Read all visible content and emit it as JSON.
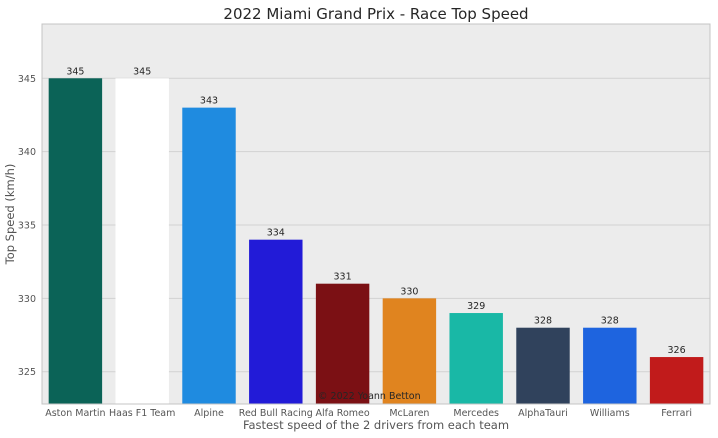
{
  "chart_data": {
    "type": "bar",
    "title": "2022 Miami Grand Prix - Race Top Speed",
    "xlabel": "Fastest speed of the 2 drivers from each team",
    "ylabel": "Top Speed (km/h)",
    "categories": [
      "Aston Martin",
      "Haas F1 Team",
      "Alpine",
      "Red Bull Racing",
      "Alfa Romeo",
      "McLaren",
      "Mercedes",
      "AlphaTauri",
      "Williams",
      "Ferrari"
    ],
    "values": [
      345,
      345,
      343,
      334,
      331,
      330,
      329,
      328,
      328,
      326
    ],
    "colors": [
      "#0b6357",
      "#ffffff",
      "#1f8be0",
      "#221bd7",
      "#7b1014",
      "#e0841f",
      "#19b8a6",
      "#30425c",
      "#1e64df",
      "#c11b1b"
    ],
    "ylim": [
      322.8,
      348.7
    ],
    "yticks": [
      325,
      330,
      335,
      340,
      345
    ],
    "grid": true,
    "background": "#ececec",
    "annotation": "© 2022 Yoann Betton"
  }
}
